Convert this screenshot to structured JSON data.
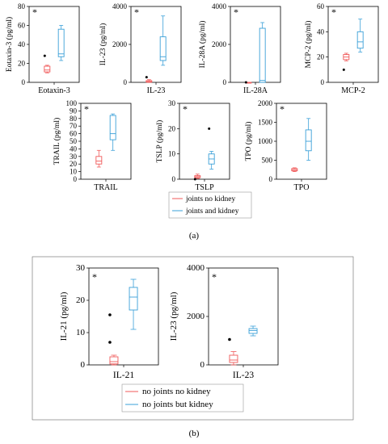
{
  "colors": {
    "red": "#f05a5a",
    "blue": "#3aa0d8"
  },
  "panel_a": {
    "label": "(a)",
    "legend": [
      "joints no kidney",
      "joints and kidney"
    ]
  },
  "panel_b": {
    "label": "(b)",
    "legend": [
      "no joints no kidney",
      "no joints but kidney"
    ]
  },
  "chart_data": [
    {
      "type": "box",
      "panel": "a",
      "id": "eotaxin3",
      "xlabel": "Eotaxin-3",
      "ylabel": "Eotaxin-3 (pg/ml)",
      "annotation": "*",
      "ylim": [
        0,
        80
      ],
      "yticks": [
        0,
        20,
        40,
        60,
        80
      ],
      "ytick_labels": [
        "0",
        "20",
        "40",
        "60",
        "80"
      ],
      "series": [
        {
          "min": 10,
          "q1": 11,
          "median": 13,
          "q3": 17,
          "max": 18,
          "outliers": [
            28
          ]
        },
        {
          "min": 23,
          "q1": 27,
          "median": 30,
          "q3": 56,
          "max": 60,
          "outliers": []
        }
      ]
    },
    {
      "type": "box",
      "panel": "a",
      "id": "il23a",
      "xlabel": "IL-23",
      "ylabel": "IL-23 (pg/ml)",
      "annotation": "*",
      "ylim": [
        0,
        4000
      ],
      "yticks": [
        0,
        2000,
        4000
      ],
      "ytick_labels": [
        "0",
        "2000",
        "4000"
      ],
      "series": [
        {
          "min": 0,
          "q1": 10,
          "median": 40,
          "q3": 90,
          "max": 140,
          "outliers": [
            270
          ]
        },
        {
          "min": 900,
          "q1": 1150,
          "median": 1350,
          "q3": 2400,
          "max": 3500,
          "outliers": []
        }
      ]
    },
    {
      "type": "box",
      "panel": "a",
      "id": "il28a",
      "xlabel": "IL-28A",
      "ylabel": "IL-28A (pg/ml)",
      "annotation": "*",
      "ylim": [
        0,
        4000
      ],
      "yticks": [
        0,
        2000,
        4000
      ],
      "ytick_labels": [
        "0",
        "2000",
        "4000"
      ],
      "series": [
        {
          "min": 0,
          "q1": 0,
          "median": 0,
          "q3": 0,
          "max": 0,
          "outliers": [
            0
          ]
        },
        {
          "min": 0,
          "q1": 0,
          "median": 100,
          "q3": 2850,
          "max": 3150,
          "outliers": []
        }
      ]
    },
    {
      "type": "box",
      "panel": "a",
      "id": "mcp2",
      "xlabel": "MCP-2",
      "ylabel": "MCP-2 (pg/ml)",
      "annotation": "*",
      "ylim": [
        0,
        60
      ],
      "yticks": [
        0,
        20,
        40,
        60
      ],
      "ytick_labels": [
        "0",
        "20",
        "40",
        "60"
      ],
      "series": [
        {
          "min": 17,
          "q1": 18,
          "median": 20,
          "q3": 22,
          "max": 23,
          "outliers": [
            10
          ]
        },
        {
          "min": 24,
          "q1": 27,
          "median": 32,
          "q3": 40,
          "max": 50,
          "outliers": []
        }
      ]
    },
    {
      "type": "box",
      "panel": "a",
      "id": "trail",
      "xlabel": "TRAIL",
      "ylabel": "TRAIL (pg/ml)",
      "annotation": "*",
      "ylim": [
        0,
        100
      ],
      "yticks": [
        0,
        10,
        20,
        30,
        40,
        50,
        60,
        70,
        80,
        90,
        100
      ],
      "ytick_labels": [
        "0",
        "10",
        "20",
        "30",
        "40",
        "50",
        "60",
        "70",
        "80",
        "90",
        "100"
      ],
      "series": [
        {
          "min": 16,
          "q1": 20,
          "median": 24,
          "q3": 30,
          "max": 38,
          "outliers": []
        },
        {
          "min": 38,
          "q1": 52,
          "median": 60,
          "q3": 84,
          "max": 86,
          "outliers": []
        }
      ]
    },
    {
      "type": "box",
      "panel": "a",
      "id": "tslp",
      "xlabel": "TSLP",
      "ylabel": "TSLP (pg/ml)",
      "annotation": "*",
      "ylim": [
        0,
        30
      ],
      "yticks": [
        0,
        10,
        20,
        30
      ],
      "ytick_labels": [
        "0",
        "10",
        "20",
        "30"
      ],
      "series": [
        {
          "min": 0.3,
          "q1": 0.6,
          "median": 1,
          "q3": 1.4,
          "max": 2,
          "outliers": [
            0
          ]
        },
        {
          "min": 4,
          "q1": 6,
          "median": 8,
          "q3": 10,
          "max": 11,
          "outliers": [
            20
          ]
        }
      ]
    },
    {
      "type": "box",
      "panel": "a",
      "id": "tpo",
      "xlabel": "TPO",
      "ylabel": "TPO (pg/ml)",
      "annotation": "*",
      "ylim": [
        0,
        2000
      ],
      "yticks": [
        0,
        500,
        1000,
        1500,
        2000
      ],
      "ytick_labels": [
        "0",
        "500",
        "1000",
        "1500",
        "2000"
      ],
      "series": [
        {
          "min": 200,
          "q1": 220,
          "median": 250,
          "q3": 280,
          "max": 300,
          "outliers": []
        },
        {
          "min": 500,
          "q1": 750,
          "median": 1000,
          "q3": 1300,
          "max": 1600,
          "outliers": []
        }
      ]
    },
    {
      "type": "box",
      "panel": "b",
      "id": "il21",
      "xlabel": "IL-21",
      "ylabel": "IL-21 (pg/ml)",
      "annotation": "*",
      "ylim": [
        0,
        30
      ],
      "yticks": [
        0,
        10,
        20,
        30
      ],
      "ytick_labels": [
        "0",
        "10",
        "20",
        "30"
      ],
      "series": [
        {
          "min": 0,
          "q1": 0.3,
          "median": 1,
          "q3": 2.5,
          "max": 3,
          "outliers": [
            7,
            15.5
          ]
        },
        {
          "min": 11,
          "q1": 17,
          "median": 21,
          "q3": 24,
          "max": 26.5,
          "outliers": []
        }
      ]
    },
    {
      "type": "box",
      "panel": "b",
      "id": "il23b",
      "xlabel": "IL-23",
      "ylabel": "IL-23 (pg/ml)",
      "annotation": "*",
      "ylim": [
        0,
        4000
      ],
      "yticks": [
        0,
        2000,
        4000
      ],
      "ytick_labels": [
        "0",
        "2000",
        "4000"
      ],
      "series": [
        {
          "min": 0,
          "q1": 100,
          "median": 200,
          "q3": 400,
          "max": 550,
          "outliers": [
            1050
          ]
        },
        {
          "min": 1200,
          "q1": 1300,
          "median": 1420,
          "q3": 1500,
          "max": 1600,
          "outliers": []
        }
      ]
    }
  ]
}
